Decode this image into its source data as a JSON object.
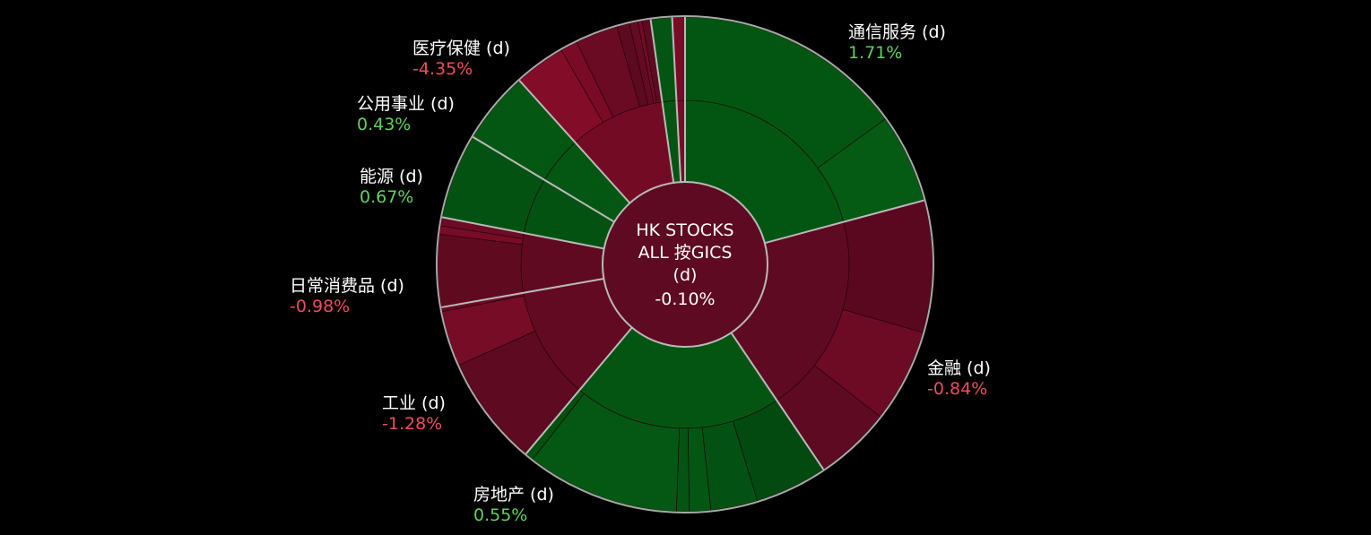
{
  "chart_data": {
    "type": "sunburst",
    "center": {
      "lines": [
        "HK STOCKS",
        "ALL 按GICS",
        "(d)"
      ],
      "value": "-0.10%",
      "color": "#5e0a22"
    },
    "colors": {
      "positive_label": "#5fd35f",
      "negative_label": "#ef4c5d",
      "divider": "#b9b9b9",
      "outline": "#a8a8a8"
    },
    "sectors": [
      {
        "name": "通信服务 (d)",
        "value": "1.71%",
        "sign": "positive",
        "start": 0,
        "end": 75,
        "color": "#035612",
        "children": [
          {
            "start": 0,
            "end": 54,
            "color": "#035612"
          },
          {
            "start": 54,
            "end": 75,
            "color": "#055a14"
          }
        ]
      },
      {
        "name": "金融 (d)",
        "value": "-0.84%",
        "sign": "negative",
        "start": 75,
        "end": 146,
        "color": "#5e0a22",
        "children": [
          {
            "start": 75,
            "end": 106,
            "color": "#5a0820"
          },
          {
            "start": 106,
            "end": 128,
            "color": "#6e0b24"
          },
          {
            "start": 128,
            "end": 146,
            "color": "#5e0a22"
          }
        ]
      },
      {
        "name": "房地产 (d)",
        "value": "0.55%",
        "sign": "positive",
        "start": 146,
        "end": 220,
        "color": "#045512",
        "children": [
          {
            "start": 146,
            "end": 163,
            "color": "#024a10"
          },
          {
            "start": 163,
            "end": 174,
            "color": "#035213"
          },
          {
            "start": 174,
            "end": 179,
            "color": "#045613"
          },
          {
            "start": 179,
            "end": 182,
            "color": "#045513"
          },
          {
            "start": 182,
            "end": 218,
            "color": "#045814"
          },
          {
            "start": 218,
            "end": 220,
            "color": "#03500f"
          }
        ]
      },
      {
        "name": "工业 (d)",
        "value": "-1.28%",
        "sign": "negative",
        "start": 220,
        "end": 260,
        "color": "#620a22",
        "children": [
          {
            "start": 220,
            "end": 246,
            "color": "#5e0a20"
          },
          {
            "start": 246,
            "end": 259,
            "color": "#760c25"
          },
          {
            "start": 259,
            "end": 260,
            "color": "#6a0a22"
          }
        ]
      },
      {
        "name": "日常消费品 (d)",
        "value": "-0.98%",
        "sign": "negative",
        "start": 260,
        "end": 281,
        "color": "#600a22",
        "children": [
          {
            "start": 260,
            "end": 277,
            "color": "#600a20"
          },
          {
            "start": 277,
            "end": 279,
            "color": "#760c25"
          },
          {
            "start": 279,
            "end": 281,
            "color": "#6c0b24"
          }
        ]
      },
      {
        "name": "能源 (d)",
        "value": "0.67%",
        "sign": "positive",
        "start": 281,
        "end": 301,
        "color": "#035212",
        "children": [
          {
            "start": 281,
            "end": 301,
            "color": "#035212"
          }
        ]
      },
      {
        "name": "公用事业 (d)",
        "value": "0.43%",
        "sign": "positive",
        "start": 301,
        "end": 318,
        "color": "#045613",
        "children": [
          {
            "start": 301,
            "end": 318,
            "color": "#045613"
          }
        ]
      },
      {
        "name": "医疗保健 (d)",
        "value": "-4.35%",
        "sign": "negative",
        "start": 318,
        "end": 352,
        "color": "#740b25",
        "children": [
          {
            "start": 318,
            "end": 330,
            "color": "#830d28"
          },
          {
            "start": 330,
            "end": 334,
            "color": "#7a0b26"
          },
          {
            "start": 334,
            "end": 344,
            "color": "#6a0b23"
          },
          {
            "start": 344,
            "end": 347,
            "color": "#5c0a20"
          },
          {
            "start": 347,
            "end": 349,
            "color": "#640a22"
          },
          {
            "start": 349,
            "end": 350,
            "color": "#720b25"
          },
          {
            "start": 350,
            "end": 352,
            "color": "#5e0a20"
          }
        ]
      },
      {
        "name": "",
        "value": "",
        "sign": "positive",
        "start": 352,
        "end": 357,
        "color": "#045513",
        "children": [
          {
            "start": 352,
            "end": 357,
            "color": "#045513"
          }
        ]
      },
      {
        "name": "",
        "value": "",
        "sign": "negative",
        "start": 357,
        "end": 360,
        "color": "#7a0b26",
        "children": [
          {
            "start": 357,
            "end": 360,
            "color": "#7a0b26"
          }
        ]
      }
    ]
  }
}
